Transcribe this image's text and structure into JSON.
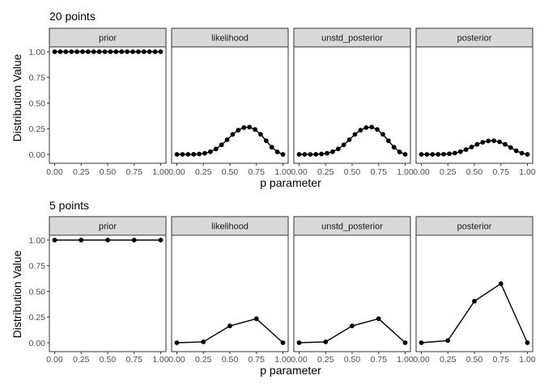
{
  "chart_data": [
    {
      "type": "line",
      "title": "20 points",
      "xlabel": "p parameter",
      "ylabel": "Distribution Value",
      "xlim": [
        0,
        1
      ],
      "ylim": [
        0,
        1
      ],
      "x_ticks": [
        "0.00",
        "0.25",
        "0.50",
        "0.75",
        "1.00"
      ],
      "y_ticks": [
        "0.00",
        "0.25",
        "0.50",
        "0.75",
        "1.00"
      ],
      "x": [
        0.0,
        0.0526,
        0.1053,
        0.1579,
        0.2105,
        0.2632,
        0.3158,
        0.3684,
        0.4211,
        0.4737,
        0.5263,
        0.5789,
        0.6316,
        0.6842,
        0.7368,
        0.7895,
        0.8421,
        0.8947,
        0.9474,
        1.0
      ],
      "series": [
        {
          "name": "prior",
          "values": [
            1,
            1,
            1,
            1,
            1,
            1,
            1,
            1,
            1,
            1,
            1,
            1,
            1,
            1,
            1,
            1,
            1,
            1,
            1,
            1
          ]
        },
        {
          "name": "likelihood",
          "values": [
            0.0,
            0.0,
            0.0,
            0.001,
            0.004,
            0.011,
            0.026,
            0.053,
            0.093,
            0.143,
            0.195,
            0.236,
            0.261,
            0.266,
            0.243,
            0.196,
            0.133,
            0.07,
            0.024,
            0.0
          ]
        },
        {
          "name": "unstd_posterior",
          "values": [
            0.0,
            0.0,
            0.0,
            0.001,
            0.004,
            0.011,
            0.026,
            0.053,
            0.093,
            0.143,
            0.195,
            0.236,
            0.261,
            0.266,
            0.243,
            0.196,
            0.133,
            0.07,
            0.024,
            0.0
          ]
        },
        {
          "name": "posterior",
          "values": [
            0.0,
            0.0,
            0.0,
            0.0004,
            0.002,
            0.006,
            0.013,
            0.027,
            0.047,
            0.072,
            0.098,
            0.118,
            0.131,
            0.133,
            0.122,
            0.098,
            0.067,
            0.035,
            0.012,
            0.0
          ]
        }
      ]
    },
    {
      "type": "line",
      "title": "5 points",
      "xlabel": "p parameter",
      "ylabel": "Distribution Value",
      "xlim": [
        0,
        1
      ],
      "ylim": [
        0,
        1
      ],
      "x_ticks": [
        "0.00",
        "0.25",
        "0.50",
        "0.75",
        "1.00"
      ],
      "y_ticks": [
        "0.00",
        "0.25",
        "0.50",
        "0.75",
        "1.00"
      ],
      "x": [
        0.0,
        0.25,
        0.5,
        0.75,
        1.0
      ],
      "series": [
        {
          "name": "prior",
          "values": [
            1,
            1,
            1,
            1,
            1
          ]
        },
        {
          "name": "likelihood",
          "values": [
            0.0,
            0.0087,
            0.164,
            0.2336,
            0.0
          ]
        },
        {
          "name": "unstd_posterior",
          "values": [
            0.0,
            0.0087,
            0.164,
            0.2336,
            0.0
          ]
        },
        {
          "name": "posterior",
          "values": [
            0.0,
            0.0215,
            0.4041,
            0.5754,
            0.0
          ]
        }
      ]
    }
  ]
}
